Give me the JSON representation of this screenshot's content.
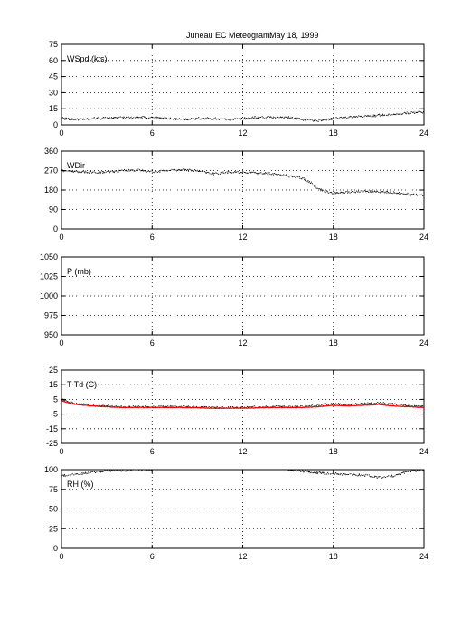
{
  "title": {
    "main": "Juneau EC Meteogram:",
    "date": "May 18, 1999"
  },
  "chart_data": [
    {
      "type": "line",
      "label": "WSpd (kts)",
      "xlim": [
        0,
        24
      ],
      "xticks": [
        0,
        6,
        12,
        18,
        24
      ],
      "ylim": [
        0,
        75
      ],
      "yticks": [
        0,
        15,
        30,
        45,
        60,
        75
      ],
      "grid": true,
      "series": [
        {
          "color": "#000000",
          "marker": "dots",
          "x": [
            0,
            1,
            2,
            3,
            4,
            5,
            6,
            7,
            8,
            9,
            10,
            11,
            12,
            13,
            14,
            15,
            16,
            17,
            18,
            19,
            20,
            21,
            22,
            23,
            24
          ],
          "y": [
            6,
            5,
            6,
            6,
            7,
            7,
            7,
            6,
            5,
            6,
            6,
            5,
            6,
            7,
            7,
            7,
            5,
            4,
            6,
            7,
            8,
            9,
            10,
            11,
            12
          ]
        }
      ]
    },
    {
      "type": "line",
      "label": "WDir",
      "xlim": [
        0,
        24
      ],
      "xticks": [
        0,
        6,
        12,
        18,
        24
      ],
      "ylim": [
        0,
        360
      ],
      "yticks": [
        0,
        90,
        180,
        270,
        360
      ],
      "grid": true,
      "series": [
        {
          "color": "#000000",
          "marker": "dots",
          "x": [
            0,
            1,
            2,
            3,
            4,
            5,
            6,
            7,
            8,
            9,
            10,
            11,
            12,
            13,
            14,
            15,
            16,
            16.5,
            17,
            18,
            19,
            20,
            21,
            22,
            23,
            24
          ],
          "y": [
            270,
            265,
            260,
            262,
            270,
            272,
            265,
            270,
            275,
            268,
            255,
            262,
            262,
            258,
            255,
            245,
            235,
            215,
            185,
            165,
            170,
            175,
            172,
            168,
            160,
            155
          ]
        }
      ]
    },
    {
      "type": "line",
      "label": "P (mb)",
      "xlim": [
        0,
        24
      ],
      "xticks": [
        0,
        6,
        12,
        18,
        24
      ],
      "ylim": [
        950,
        1050
      ],
      "yticks": [
        950,
        975,
        1000,
        1025,
        1050
      ],
      "grid": true,
      "series": []
    },
    {
      "type": "line",
      "label": "T Td (C)",
      "xlim": [
        0,
        24
      ],
      "xticks": [
        0,
        6,
        12,
        18,
        24
      ],
      "ylim": [
        -25,
        25
      ],
      "yticks": [
        -25,
        -15,
        -5,
        5,
        15,
        25
      ],
      "grid": true,
      "series": [
        {
          "color": "#000000",
          "marker": "dots",
          "x": [
            0,
            0.5,
            1,
            2,
            3,
            4,
            6,
            8,
            10,
            12,
            14,
            16,
            17,
            18,
            19,
            20,
            21,
            22,
            23,
            24
          ],
          "y": [
            5,
            3,
            2,
            1,
            0.5,
            0,
            0,
            0,
            -0.5,
            -0.5,
            0,
            0,
            1,
            2,
            1.5,
            2,
            2.5,
            2,
            0.5,
            0
          ]
        },
        {
          "color": "#ff0000",
          "marker": "line",
          "x": [
            0,
            0.5,
            1,
            2,
            3,
            4,
            6,
            8,
            10,
            12,
            14,
            16,
            17,
            18,
            19,
            20,
            21,
            22,
            23,
            24
          ],
          "y": [
            4,
            2.5,
            1.5,
            0.5,
            0,
            -0.5,
            -0.5,
            -0.5,
            -1,
            -1,
            -0.5,
            -0.5,
            0,
            1,
            0.5,
            1,
            1.5,
            0.5,
            0,
            -0.5
          ]
        }
      ]
    },
    {
      "type": "line",
      "label": "RH (%)",
      "xlim": [
        0,
        24
      ],
      "xticks": [
        0,
        6,
        12,
        18,
        24
      ],
      "ylim": [
        0,
        100
      ],
      "yticks": [
        0,
        25,
        50,
        75,
        100
      ],
      "grid": true,
      "series": [
        {
          "color": "#000000",
          "marker": "dots",
          "x": [
            0,
            1,
            2,
            3,
            4,
            5,
            6
          ],
          "y": [
            92,
            94,
            97,
            98,
            99,
            100,
            100
          ]
        },
        {
          "color": "#000000",
          "marker": "dots",
          "x": [
            15,
            16,
            17,
            18,
            19,
            20,
            21,
            22,
            23,
            24
          ],
          "y": [
            100,
            98,
            96,
            95,
            94,
            93,
            90,
            92,
            98,
            100
          ]
        }
      ]
    }
  ]
}
